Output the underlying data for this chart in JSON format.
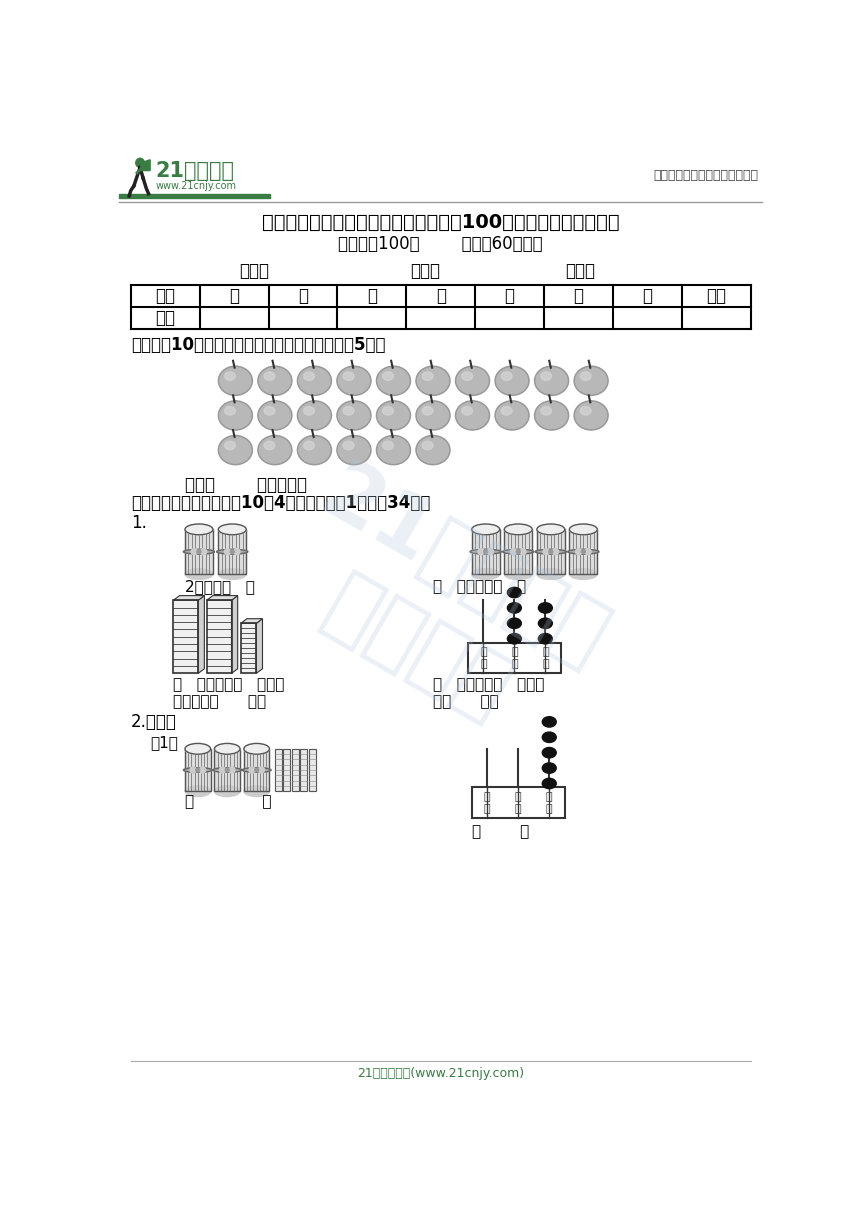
{
  "title": "人教版一年级（下）册数学第四单元《100以内数的认识》测试卷",
  "subtitle": "（满分：100分        时间：60分钟）",
  "table_headers": [
    "题号",
    "一",
    "二",
    "三",
    "四",
    "五",
    "六",
    "七",
    "总分"
  ],
  "section1_title": "一、每数10个圈一圈，数一数，共有多少个。（5分）",
  "section1_answer": "共有（        ）个苹果。",
  "section2_title": "二、想一想，填一填。（10题4分，其余每空1分，共34分）",
  "section2_q1_label": "1.",
  "section2_left_text1": "2个十是（   ）",
  "section2_right_text1": "（   ）个十是（   ）",
  "section2_left_text2": "（   ）个十和（   ）个一",
  "section2_left_text3": "合起来是（      ）。",
  "section2_right_text2": "（   ）个十和（   ）个一",
  "section2_right_text3": "是（      ）。",
  "section2_q2_label": "2.写数。",
  "section2_q2_sub": "（1）",
  "section2_q2_answer_left": "（              ）",
  "section2_q2_answer_right": "（        ）",
  "header_right": "中小学教育资源及组卷应用平台",
  "footer": "21世纪教育网(www.21cnjy.com)",
  "bg_color": "#ffffff",
  "text_color": "#000000",
  "green_color": "#3a7d44",
  "dark_green": "#1a5c2a",
  "watermark_color": "#b8cfe8"
}
